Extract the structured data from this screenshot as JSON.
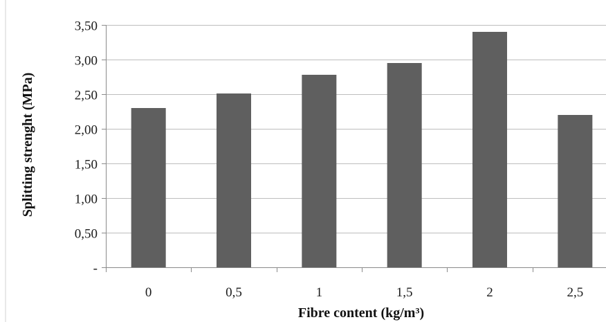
{
  "chart_data": {
    "type": "bar",
    "categories": [
      "0",
      "0,5",
      "1",
      "1,5",
      "2",
      "2,5"
    ],
    "values": [
      2.3,
      2.51,
      2.78,
      2.95,
      3.4,
      2.2
    ],
    "xlabel": "Fibre content (kg/m³)",
    "ylabel": "Splitting strenght (MPa)",
    "ylim": [
      0,
      3.5
    ],
    "yticks": [
      0,
      0.5,
      1.0,
      1.5,
      2.0,
      2.5,
      3.0,
      3.5
    ],
    "ytick_labels": [
      "-",
      "0,50",
      "1,00",
      "1,50",
      "2,00",
      "2,50",
      "3,00",
      "3,50"
    ],
    "grid": true,
    "legend": "none",
    "bar_color": "#5f5f5f",
    "grid_color": "#bdbdbd",
    "axis_color": "#8a8a8a"
  }
}
